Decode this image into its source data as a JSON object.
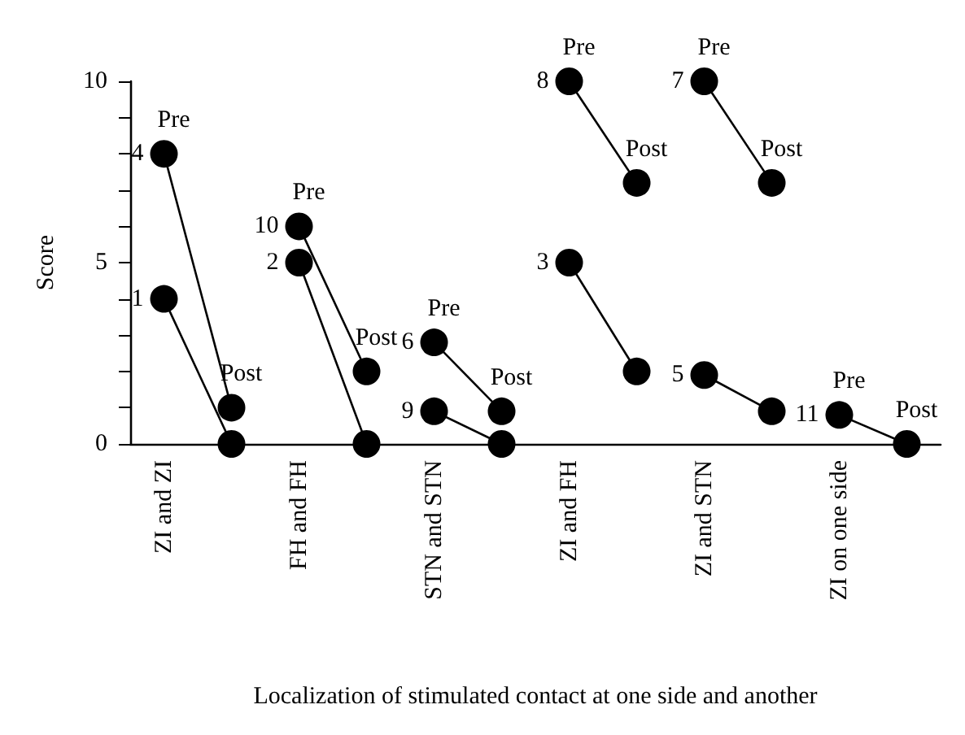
{
  "chart_data": {
    "type": "line",
    "xlabel": "Localization of stimulated contact at one side and another",
    "ylabel": "Score",
    "categories": [
      "ZI and ZI",
      null,
      "FH and FH",
      null,
      "STN and STN",
      null,
      "ZI and FH",
      null,
      "ZI and STN",
      null,
      "ZI on one side",
      null
    ],
    "ylim": [
      0,
      10
    ],
    "yticks": [
      0,
      {
        "value": 1,
        "label": null
      },
      {
        "value": 2,
        "label": null
      },
      {
        "value": 3,
        "label": null
      },
      {
        "value": 4,
        "label": null
      },
      5,
      {
        "value": 6,
        "label": null
      },
      {
        "value": 7,
        "label": null
      },
      {
        "value": 8,
        "label": null
      },
      {
        "value": 9,
        "label": null
      },
      10
    ],
    "series": [
      {
        "name": "4",
        "color": "#000000",
        "values": [
          8,
          1,
          null,
          null,
          null,
          null,
          null,
          null,
          null,
          null,
          null,
          null
        ]
      },
      {
        "name": "1",
        "color": "#000000",
        "values": [
          4,
          0,
          null,
          null,
          null,
          null,
          null,
          null,
          null,
          null,
          null,
          null
        ]
      },
      {
        "name": "10",
        "color": "#000000",
        "values": [
          null,
          null,
          6,
          2,
          null,
          null,
          null,
          null,
          null,
          null,
          null,
          null
        ]
      },
      {
        "name": "2",
        "color": "#000000",
        "values": [
          null,
          null,
          5,
          0,
          null,
          null,
          null,
          null,
          null,
          null,
          null,
          null
        ]
      },
      {
        "name": "6",
        "color": "#000000",
        "values": [
          null,
          null,
          null,
          null,
          2.8,
          0.9,
          null,
          null,
          null,
          null,
          null,
          null
        ]
      },
      {
        "name": "9",
        "color": "#000000",
        "values": [
          null,
          null,
          null,
          null,
          0.9,
          0,
          null,
          null,
          null,
          null,
          null,
          null
        ]
      },
      {
        "name": "8",
        "color": "#000000",
        "values": [
          null,
          null,
          null,
          null,
          null,
          null,
          10,
          7.2,
          null,
          null,
          null,
          null
        ]
      },
      {
        "name": "3",
        "color": "#000000",
        "values": [
          null,
          null,
          null,
          null,
          null,
          null,
          5,
          2,
          null,
          null,
          null,
          null
        ]
      },
      {
        "name": "7",
        "color": "#000000",
        "values": [
          null,
          null,
          null,
          null,
          null,
          null,
          null,
          null,
          10,
          7.2,
          null,
          null
        ]
      },
      {
        "name": "5",
        "color": "#000000",
        "values": [
          null,
          null,
          null,
          null,
          null,
          null,
          null,
          null,
          1.9,
          0.9,
          null,
          null
        ]
      },
      {
        "name": "11",
        "color": "#000000",
        "values": [
          null,
          null,
          null,
          null,
          null,
          null,
          null,
          null,
          null,
          null,
          0.8,
          0
        ]
      }
    ],
    "annotations": [
      {
        "text": "Pre",
        "x": "ZI and ZI",
        "y": 8
      },
      "Post",
      {
        "text": "Pre",
        "x": "FH and FH",
        "y": 6
      },
      "Post",
      {
        "text": "Pre",
        "x": "STN and STN",
        "y": 2.8
      },
      "Post",
      {
        "text": "Pre",
        "x": "ZI and FH",
        "y": 10
      },
      "Post",
      {
        "text": "Pre",
        "x": "ZI and STN",
        "y": 10
      },
      "Post",
      {
        "text": "Pre",
        "x": "ZI on one side",
        "y": 0.8
      },
      "Post"
    ],
    "marker": "circle",
    "line_style": "solid",
    "grid": false,
    "legend": false
  }
}
